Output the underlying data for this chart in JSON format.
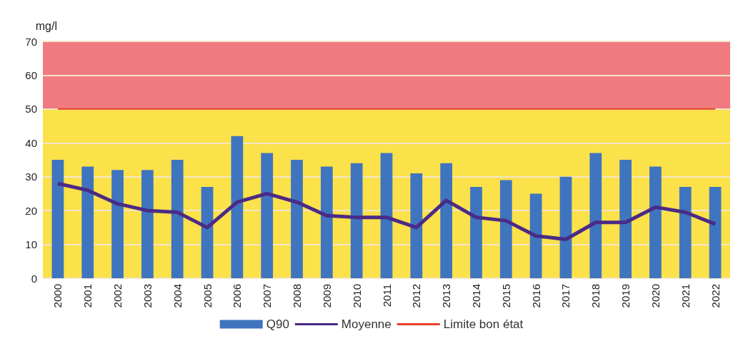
{
  "chart_data": {
    "type": "bar",
    "ylabel": "mg/l",
    "categories": [
      "2000",
      "2001",
      "2002",
      "2003",
      "2004",
      "2005",
      "2006",
      "2007",
      "2008",
      "2009",
      "2010",
      "2011",
      "2012",
      "2013",
      "2014",
      "2015",
      "2016",
      "2017",
      "2018",
      "2019",
      "2020",
      "2021",
      "2022"
    ],
    "series": [
      {
        "name": "Q90",
        "color": "#3f74bf",
        "values": [
          35,
          33,
          32,
          32,
          35,
          27,
          42,
          37,
          35,
          33,
          34,
          37,
          31,
          34,
          27,
          29,
          25,
          30,
          37,
          35,
          33,
          27,
          27
        ]
      },
      {
        "name": "Moyenne",
        "type": "line",
        "color": "#4b2a86",
        "values": [
          28,
          26,
          22,
          20,
          19.5,
          15,
          22.5,
          25,
          22.5,
          18.5,
          18,
          18,
          15,
          23,
          18,
          17,
          12.5,
          11.5,
          16.5,
          16.5,
          21,
          19.5,
          16
        ]
      },
      {
        "name": "Limite bon état",
        "type": "line",
        "color": "#e8402a",
        "values": [
          50,
          50,
          50,
          50,
          50,
          50,
          50,
          50,
          50,
          50,
          50,
          50,
          50,
          50,
          50,
          50,
          50,
          50,
          50,
          50,
          50,
          50,
          50
        ]
      }
    ],
    "bands": [
      {
        "axis": "y",
        "from": 50,
        "to": 70,
        "color": "#f07a80"
      },
      {
        "axis": "y",
        "from": 0,
        "to": 50,
        "color": "#fbe14a"
      }
    ],
    "ylim": [
      0,
      70
    ],
    "yticks": [
      0,
      10,
      20,
      30,
      40,
      50,
      60,
      70
    ],
    "grid": "y",
    "legend": "bottom",
    "marker": "none"
  }
}
